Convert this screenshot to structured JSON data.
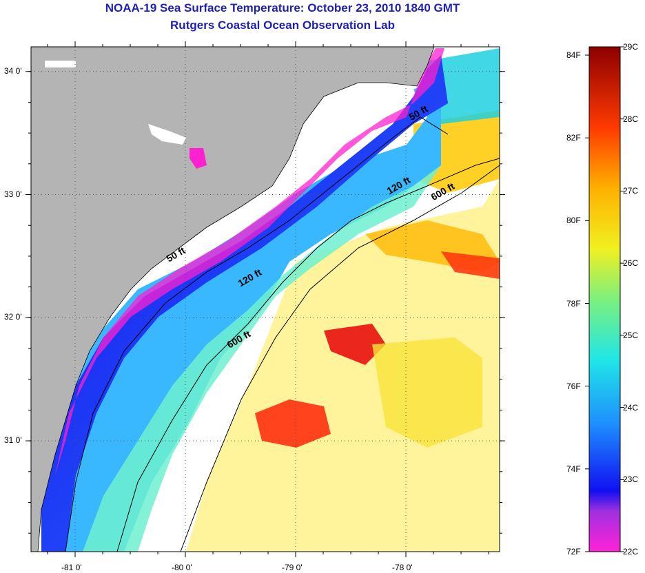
{
  "title": "NOAA-19 Sea Surface Temperature:  October 23, 2010 1840 GMT",
  "subtitle": "Rutgers Coastal Ocean Observation Lab",
  "map": {
    "lon_range": [
      -81.4,
      -77.15
    ],
    "lat_range": [
      30.1,
      34.2
    ],
    "lon_ticks": [
      {
        "value": -81,
        "label": "-81 0'"
      },
      {
        "value": -80,
        "label": "-80 0'"
      },
      {
        "value": -79,
        "label": "-79 0'"
      },
      {
        "value": -78,
        "label": "-78 0'"
      }
    ],
    "lat_ticks": [
      {
        "value": 34,
        "label": "34 0'"
      },
      {
        "value": 33,
        "label": "33 0'"
      },
      {
        "value": 32,
        "label": "32 0'"
      },
      {
        "value": 31,
        "label": "31 0'"
      }
    ],
    "contour_labels": [
      {
        "text": "50 ft",
        "lon": -77.95,
        "lat": 33.6
      },
      {
        "text": "120 ft",
        "lon": -78.15,
        "lat": 33.0
      },
      {
        "text": "600 ft",
        "lon": -77.75,
        "lat": 32.95
      },
      {
        "text": "50 ft",
        "lon": -80.15,
        "lat": 32.45
      },
      {
        "text": "120 ft",
        "lon": -79.5,
        "lat": 32.25
      },
      {
        "text": "600 ft",
        "lon": -79.6,
        "lat": 31.75
      }
    ],
    "colors": {
      "land": "#b4b4b4",
      "cloud": "#ffffff"
    }
  },
  "colorbar": {
    "celsius_labels": [
      "29C",
      "28C",
      "27C",
      "26C",
      "25C",
      "24C",
      "23C",
      "22C"
    ],
    "fahrenheit_labels": [
      "84F",
      "82F",
      "80F",
      "78F",
      "76F",
      "74F",
      "72F"
    ],
    "range_c": [
      22,
      29
    ],
    "range_f": [
      72,
      84.2
    ]
  }
}
